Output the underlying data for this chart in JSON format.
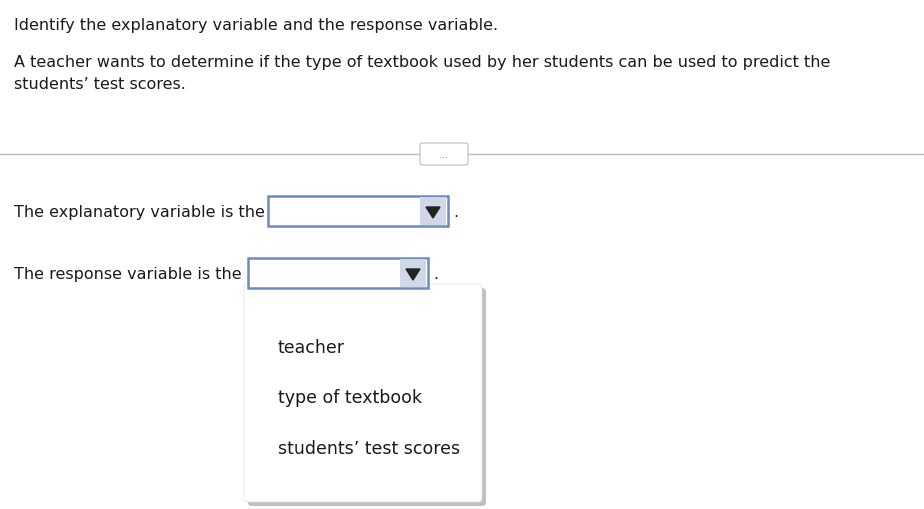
{
  "title_line1": "Identify the explanatory variable and the response variable.",
  "body_text": "A teacher wants to determine if the type of textbook used by her students can be used to predict the\nstudents’ test scores.",
  "label1": "The explanatory variable is the",
  "label2": "The response variable is the",
  "dropdown_options": [
    "teacher",
    "type of textbook",
    "students’ test scores"
  ],
  "bg_color": "#ffffff",
  "text_color": "#1a1a1a",
  "dropdown_border_color": "#6b8cba",
  "dropdown_fill": "#ffffff",
  "dropdown_shadow_color": "#c8c8c8",
  "font_size_title": 11.5,
  "font_size_body": 11.5,
  "font_size_labels": 11.5,
  "font_size_dropdown": 12.5,
  "ellipsis_text": "•••",
  "separator_line_color": "#bbbbbb",
  "arrow_color": "#222222",
  "arrow_bg": "#e8e8e8"
}
